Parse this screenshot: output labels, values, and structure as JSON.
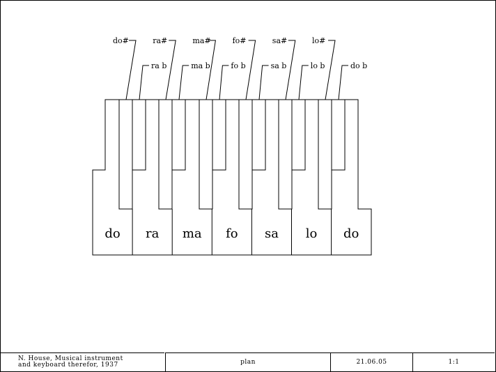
{
  "keyboard": {
    "natural_keys": [
      "do",
      "ra",
      "ma",
      "fo",
      "sa",
      "lo",
      "do"
    ],
    "sharp_labels": [
      "do#",
      "ra#",
      "ma#",
      "fo#",
      "sa#",
      "lo#"
    ],
    "flat_labels": [
      "ra b",
      "ma b",
      "fo b",
      "sa b",
      "lo b",
      "do b"
    ]
  },
  "title_block": {
    "credit_line1": "N. House, Musical instrument",
    "credit_line2": "and keyboard therefor, 1937",
    "view": "plan",
    "date": "21.06.05",
    "scale": "1:1"
  }
}
